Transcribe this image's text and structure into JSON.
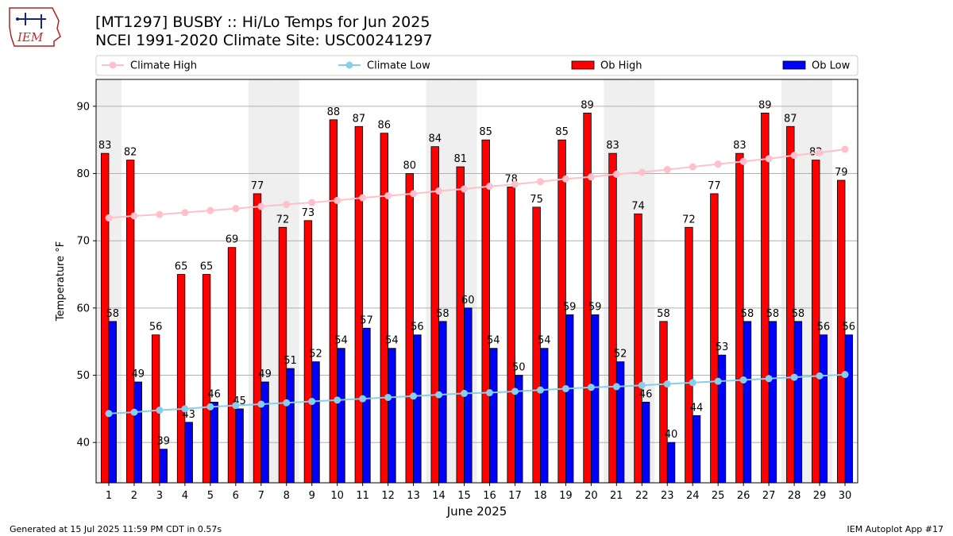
{
  "header": {
    "title_line1": "[MT1297] BUSBY :: Hi/Lo Temps for Jun 2025",
    "title_line2": "NCEI 1991-2020 Climate Site: USC00241297",
    "logo_text": "IEM"
  },
  "footer": {
    "left": "Generated at 15 Jul 2025 11:59 PM CDT in 0.57s",
    "right": "IEM Autoplot App #17"
  },
  "chart_data": {
    "type": "bar",
    "xlabel": "June 2025",
    "ylabel": "Temperature °F",
    "ylim": [
      34,
      94
    ],
    "yticks": [
      40,
      50,
      60,
      70,
      80,
      90
    ],
    "grid": "horizontal",
    "legend_position": "top",
    "categories": [
      "1",
      "2",
      "3",
      "4",
      "5",
      "6",
      "7",
      "8",
      "9",
      "10",
      "11",
      "12",
      "13",
      "14",
      "15",
      "16",
      "17",
      "18",
      "19",
      "20",
      "21",
      "22",
      "23",
      "24",
      "25",
      "26",
      "27",
      "28",
      "29",
      "30"
    ],
    "weekend_shaded_days": [
      1,
      7,
      8,
      14,
      15,
      21,
      22,
      28,
      29
    ],
    "series": [
      {
        "name": "Ob High",
        "kind": "bar",
        "color": "#ff0000",
        "values": [
          83,
          82,
          56,
          65,
          65,
          69,
          77,
          72,
          73,
          88,
          87,
          86,
          80,
          84,
          81,
          85,
          78,
          75,
          85,
          89,
          83,
          74,
          58,
          72,
          77,
          83,
          89,
          87,
          82,
          79
        ]
      },
      {
        "name": "Ob Low",
        "kind": "bar",
        "color": "#0000ff",
        "values": [
          58,
          49,
          39,
          43,
          46,
          45,
          49,
          51,
          52,
          54,
          57,
          54,
          56,
          58,
          60,
          54,
          50,
          54,
          59,
          59,
          52,
          46,
          40,
          44,
          53,
          58,
          58,
          58,
          56,
          56
        ]
      },
      {
        "name": "Climate High",
        "kind": "line",
        "color": "#ffc0cb",
        "values": [
          73.4,
          73.7,
          73.9,
          74.2,
          74.5,
          74.8,
          75.1,
          75.4,
          75.7,
          76.0,
          76.4,
          76.7,
          77.0,
          77.4,
          77.7,
          78.1,
          78.4,
          78.8,
          79.2,
          79.5,
          79.9,
          80.2,
          80.6,
          81.0,
          81.4,
          81.8,
          82.2,
          82.7,
          83.1,
          83.6
        ]
      },
      {
        "name": "Climate Low",
        "kind": "line",
        "color": "#87ceeb",
        "values": [
          44.3,
          44.5,
          44.8,
          45.0,
          45.3,
          45.5,
          45.7,
          45.9,
          46.1,
          46.3,
          46.5,
          46.7,
          46.9,
          47.1,
          47.3,
          47.4,
          47.6,
          47.8,
          48.0,
          48.2,
          48.3,
          48.5,
          48.7,
          48.9,
          49.1,
          49.3,
          49.5,
          49.7,
          49.9,
          50.1
        ]
      }
    ]
  }
}
